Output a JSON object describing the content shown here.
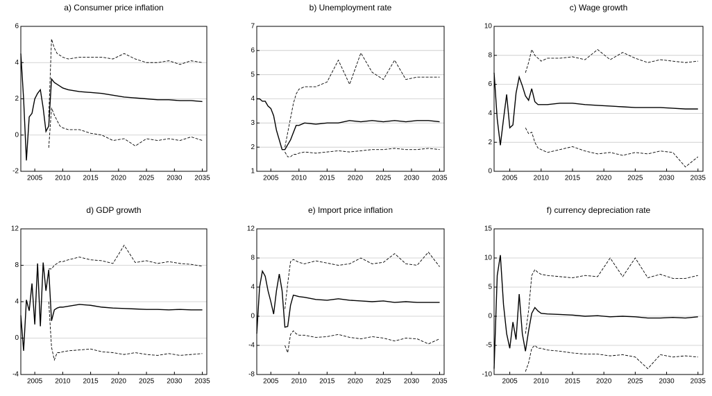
{
  "chart_data": [
    {
      "type": "line",
      "title": "a) Consumer price inflation",
      "x": [
        2002.5,
        2003,
        2003.5,
        2004,
        2004.5,
        2005,
        2005.5,
        2006,
        2006.5,
        2007,
        2007.5,
        2008,
        2008.5,
        2009,
        2009.5,
        2010,
        2011,
        2013,
        2015,
        2017,
        2019,
        2021,
        2023,
        2025,
        2027,
        2029,
        2031,
        2033,
        2035
      ],
      "xlim": [
        2002.5,
        2035.8
      ],
      "xticks": [
        2005,
        2010,
        2015,
        2020,
        2025,
        2030,
        2035
      ],
      "ylim": [
        -2,
        6
      ],
      "yticks": [
        -2,
        0,
        2,
        4,
        6
      ],
      "grid": true,
      "series": [
        {
          "color": "#000000",
          "style": "solid",
          "values": [
            4.5,
            2.0,
            -1.4,
            1.0,
            1.2,
            2.0,
            2.3,
            2.5,
            1.5,
            0.2,
            0.5,
            3.1,
            2.9,
            2.8,
            2.7,
            2.6,
            2.5,
            2.4,
            2.35,
            2.3,
            2.2,
            2.1,
            2.05,
            2.0,
            1.95,
            1.95,
            1.9,
            1.9,
            1.85
          ]
        },
        {
          "color": "#000000",
          "style": "dashed",
          "values": [
            null,
            null,
            null,
            null,
            null,
            null,
            null,
            null,
            null,
            null,
            1.0,
            5.3,
            4.8,
            4.5,
            4.4,
            4.3,
            4.2,
            4.3,
            4.3,
            4.3,
            4.2,
            4.5,
            4.2,
            4.0,
            4.0,
            4.1,
            3.9,
            4.1,
            4.0
          ]
        },
        {
          "color": "#000000",
          "style": "dashed",
          "values": [
            null,
            null,
            null,
            null,
            null,
            null,
            null,
            null,
            null,
            null,
            -0.7,
            1.5,
            1.1,
            0.8,
            0.5,
            0.4,
            0.3,
            0.3,
            0.1,
            0.0,
            -0.3,
            -0.2,
            -0.6,
            -0.2,
            -0.3,
            -0.2,
            -0.3,
            -0.1,
            -0.3
          ]
        }
      ]
    },
    {
      "type": "line",
      "title": "b) Unemployment rate",
      "x": [
        2002.5,
        2003,
        2003.5,
        2004,
        2004.5,
        2005,
        2005.5,
        2006,
        2006.5,
        2007,
        2007.5,
        2008,
        2008.5,
        2009,
        2009.5,
        2010,
        2011,
        2013,
        2015,
        2017,
        2019,
        2021,
        2023,
        2025,
        2027,
        2029,
        2031,
        2033,
        2035
      ],
      "xlim": [
        2002.5,
        2035.8
      ],
      "xticks": [
        2005,
        2010,
        2015,
        2020,
        2025,
        2030,
        2035
      ],
      "ylim": [
        1,
        7
      ],
      "yticks": [
        1,
        2,
        3,
        4,
        5,
        6,
        7
      ],
      "grid": true,
      "series": [
        {
          "color": "#000000",
          "style": "solid",
          "values": [
            4.0,
            4.0,
            3.9,
            3.9,
            3.7,
            3.6,
            3.3,
            2.7,
            2.3,
            1.9,
            1.9,
            2.1,
            2.3,
            2.6,
            2.9,
            2.9,
            3.0,
            2.95,
            3.0,
            3.0,
            3.1,
            3.05,
            3.1,
            3.05,
            3.1,
            3.05,
            3.1,
            3.1,
            3.05
          ]
        },
        {
          "color": "#000000",
          "style": "dashed",
          "values": [
            null,
            null,
            null,
            null,
            null,
            null,
            null,
            null,
            null,
            null,
            2.0,
            2.6,
            3.2,
            3.8,
            4.2,
            4.4,
            4.5,
            4.5,
            4.7,
            5.6,
            4.6,
            5.9,
            5.1,
            4.8,
            5.6,
            4.8,
            4.9,
            4.9,
            4.9
          ]
        },
        {
          "color": "#000000",
          "style": "dashed",
          "values": [
            null,
            null,
            null,
            null,
            null,
            null,
            null,
            null,
            null,
            null,
            1.8,
            1.6,
            1.6,
            1.7,
            1.7,
            1.75,
            1.8,
            1.75,
            1.8,
            1.85,
            1.8,
            1.85,
            1.9,
            1.9,
            1.95,
            1.9,
            1.9,
            1.95,
            1.9
          ]
        }
      ]
    },
    {
      "type": "line",
      "title": "c) Wage growth",
      "x": [
        2002.5,
        2003,
        2003.5,
        2004,
        2004.5,
        2005,
        2005.5,
        2006,
        2006.5,
        2007,
        2007.5,
        2008,
        2008.5,
        2009,
        2009.5,
        2010,
        2011,
        2013,
        2015,
        2017,
        2019,
        2021,
        2023,
        2025,
        2027,
        2029,
        2031,
        2033,
        2035
      ],
      "xlim": [
        2002.5,
        2035.8
      ],
      "xticks": [
        2005,
        2010,
        2015,
        2020,
        2025,
        2030,
        2035
      ],
      "ylim": [
        0,
        10
      ],
      "yticks": [
        0,
        2,
        4,
        6,
        8,
        10
      ],
      "grid": true,
      "series": [
        {
          "color": "#000000",
          "style": "solid",
          "values": [
            6.8,
            3.6,
            1.8,
            3.6,
            5.3,
            3.0,
            3.2,
            5.4,
            6.5,
            5.9,
            5.2,
            4.9,
            5.7,
            4.8,
            4.6,
            4.6,
            4.6,
            4.7,
            4.7,
            4.6,
            4.55,
            4.5,
            4.45,
            4.4,
            4.4,
            4.4,
            4.35,
            4.3,
            4.3
          ]
        },
        {
          "color": "#000000",
          "style": "dashed",
          "values": [
            null,
            null,
            null,
            null,
            null,
            null,
            null,
            null,
            null,
            null,
            6.8,
            7.5,
            8.4,
            8.0,
            7.8,
            7.6,
            7.8,
            7.8,
            7.9,
            7.7,
            8.4,
            7.7,
            8.2,
            7.8,
            7.5,
            7.7,
            7.6,
            7.5,
            7.6
          ]
        },
        {
          "color": "#000000",
          "style": "dashed",
          "values": [
            null,
            null,
            null,
            null,
            null,
            null,
            null,
            null,
            null,
            null,
            3.0,
            2.6,
            2.7,
            2.0,
            1.6,
            1.5,
            1.3,
            1.5,
            1.7,
            1.4,
            1.2,
            1.3,
            1.1,
            1.3,
            1.2,
            1.4,
            1.3,
            0.3,
            1.0
          ]
        }
      ]
    },
    {
      "type": "line",
      "title": "d) GDP growth",
      "x": [
        2002.5,
        2003,
        2003.5,
        2004,
        2004.5,
        2005,
        2005.5,
        2006,
        2006.5,
        2007,
        2007.5,
        2008,
        2008.5,
        2009,
        2009.5,
        2010,
        2011,
        2013,
        2015,
        2017,
        2019,
        2021,
        2023,
        2025,
        2027,
        2029,
        2031,
        2033,
        2035
      ],
      "xlim": [
        2002.5,
        2035.8
      ],
      "xticks": [
        2005,
        2010,
        2015,
        2020,
        2025,
        2030,
        2035
      ],
      "ylim": [
        -4,
        12
      ],
      "yticks": [
        -4,
        0,
        4,
        8,
        12
      ],
      "grid": true,
      "series": [
        {
          "color": "#000000",
          "style": "solid",
          "values": [
            2.5,
            -1.4,
            4.2,
            3.0,
            6.0,
            1.5,
            8.2,
            1.3,
            8.3,
            5.2,
            7.5,
            1.9,
            3.1,
            3.3,
            3.4,
            3.4,
            3.5,
            3.7,
            3.6,
            3.4,
            3.3,
            3.25,
            3.2,
            3.15,
            3.15,
            3.1,
            3.15,
            3.1,
            3.1
          ]
        },
        {
          "color": "#000000",
          "style": "dashed",
          "values": [
            null,
            null,
            null,
            null,
            null,
            null,
            null,
            null,
            null,
            null,
            7.6,
            7.6,
            8.0,
            8.2,
            8.4,
            8.4,
            8.6,
            8.9,
            8.6,
            8.5,
            8.2,
            10.2,
            8.3,
            8.5,
            8.2,
            8.4,
            8.2,
            8.1,
            7.9
          ]
        },
        {
          "color": "#000000",
          "style": "dashed",
          "values": [
            null,
            null,
            null,
            null,
            null,
            null,
            null,
            null,
            null,
            null,
            4.0,
            -1.0,
            -2.4,
            -1.6,
            -1.6,
            -1.5,
            -1.4,
            -1.3,
            -1.2,
            -1.5,
            -1.6,
            -1.8,
            -1.6,
            -1.8,
            -1.9,
            -1.7,
            -1.9,
            -1.8,
            -1.7
          ]
        }
      ]
    },
    {
      "type": "line",
      "title": "e) Import price inflation",
      "x": [
        2002.5,
        2003,
        2003.5,
        2004,
        2004.5,
        2005,
        2005.5,
        2006,
        2006.5,
        2007,
        2007.5,
        2008,
        2008.5,
        2009,
        2009.5,
        2010,
        2011,
        2013,
        2015,
        2017,
        2019,
        2021,
        2023,
        2025,
        2027,
        2029,
        2031,
        2033,
        2035
      ],
      "xlim": [
        2002.5,
        2035.8
      ],
      "xticks": [
        2005,
        2010,
        2015,
        2020,
        2025,
        2030,
        2035
      ],
      "ylim": [
        -8,
        12
      ],
      "yticks": [
        -8,
        -4,
        0,
        4,
        8,
        12
      ],
      "grid": true,
      "series": [
        {
          "color": "#000000",
          "style": "solid",
          "values": [
            -2.4,
            4.0,
            6.2,
            5.5,
            3.5,
            2.0,
            0.3,
            3.5,
            5.8,
            3.5,
            -1.5,
            -1.4,
            1.5,
            2.9,
            2.8,
            2.7,
            2.6,
            2.3,
            2.2,
            2.4,
            2.2,
            2.1,
            2.0,
            2.1,
            1.9,
            2.0,
            1.9,
            1.9,
            1.9
          ]
        },
        {
          "color": "#000000",
          "style": "dashed",
          "values": [
            null,
            null,
            null,
            null,
            null,
            null,
            null,
            null,
            null,
            null,
            1.0,
            4.5,
            7.5,
            7.8,
            7.6,
            7.4,
            7.2,
            7.6,
            7.3,
            7.0,
            7.2,
            8.0,
            7.2,
            7.4,
            8.6,
            7.2,
            7.0,
            8.8,
            6.8
          ]
        },
        {
          "color": "#000000",
          "style": "dashed",
          "values": [
            null,
            null,
            null,
            null,
            null,
            null,
            null,
            null,
            null,
            null,
            -4.0,
            -5.0,
            -2.5,
            -2.0,
            -2.4,
            -2.6,
            -2.6,
            -2.9,
            -2.8,
            -2.5,
            -2.9,
            -3.1,
            -2.8,
            -3.0,
            -3.4,
            -3.0,
            -3.1,
            -3.8,
            -3.1
          ]
        }
      ]
    },
    {
      "type": "line",
      "title": "f) currency depreciation rate",
      "x": [
        2002.5,
        2003,
        2003.5,
        2004,
        2004.5,
        2005,
        2005.5,
        2006,
        2006.5,
        2007,
        2007.5,
        2008,
        2008.5,
        2009,
        2009.5,
        2010,
        2011,
        2013,
        2015,
        2017,
        2019,
        2021,
        2023,
        2025,
        2027,
        2029,
        2031,
        2033,
        2035
      ],
      "xlim": [
        2002.5,
        2035.8
      ],
      "xticks": [
        2005,
        2010,
        2015,
        2020,
        2025,
        2030,
        2035
      ],
      "ylim": [
        -10,
        15
      ],
      "yticks": [
        -10,
        -5,
        0,
        5,
        10,
        15
      ],
      "grid": true,
      "series": [
        {
          "color": "#000000",
          "style": "solid",
          "values": [
            -9.0,
            7.0,
            10.5,
            2.0,
            -3.0,
            -5.5,
            -1.0,
            -4.0,
            3.8,
            -3.0,
            -6.0,
            -2.5,
            0.5,
            1.5,
            0.9,
            0.5,
            0.4,
            0.3,
            0.2,
            0.0,
            0.1,
            -0.1,
            0.0,
            -0.1,
            -0.3,
            -0.3,
            -0.2,
            -0.3,
            -0.1
          ]
        },
        {
          "color": "#000000",
          "style": "dashed",
          "values": [
            null,
            null,
            null,
            null,
            null,
            null,
            null,
            null,
            null,
            null,
            -3.0,
            1.0,
            7.0,
            8.0,
            7.5,
            7.2,
            7.0,
            6.8,
            6.6,
            7.0,
            6.8,
            10.0,
            6.8,
            10.0,
            6.6,
            7.2,
            6.5,
            6.5,
            7.0
          ]
        },
        {
          "color": "#000000",
          "style": "dashed",
          "values": [
            null,
            null,
            null,
            null,
            null,
            null,
            null,
            null,
            null,
            null,
            -9.5,
            -8.0,
            -5.5,
            -5.0,
            -5.5,
            -5.5,
            -5.8,
            -6.0,
            -6.3,
            -6.5,
            -6.5,
            -6.8,
            -6.6,
            -7.0,
            -9.0,
            -6.6,
            -7.0,
            -6.8,
            -7.0
          ]
        }
      ]
    }
  ]
}
